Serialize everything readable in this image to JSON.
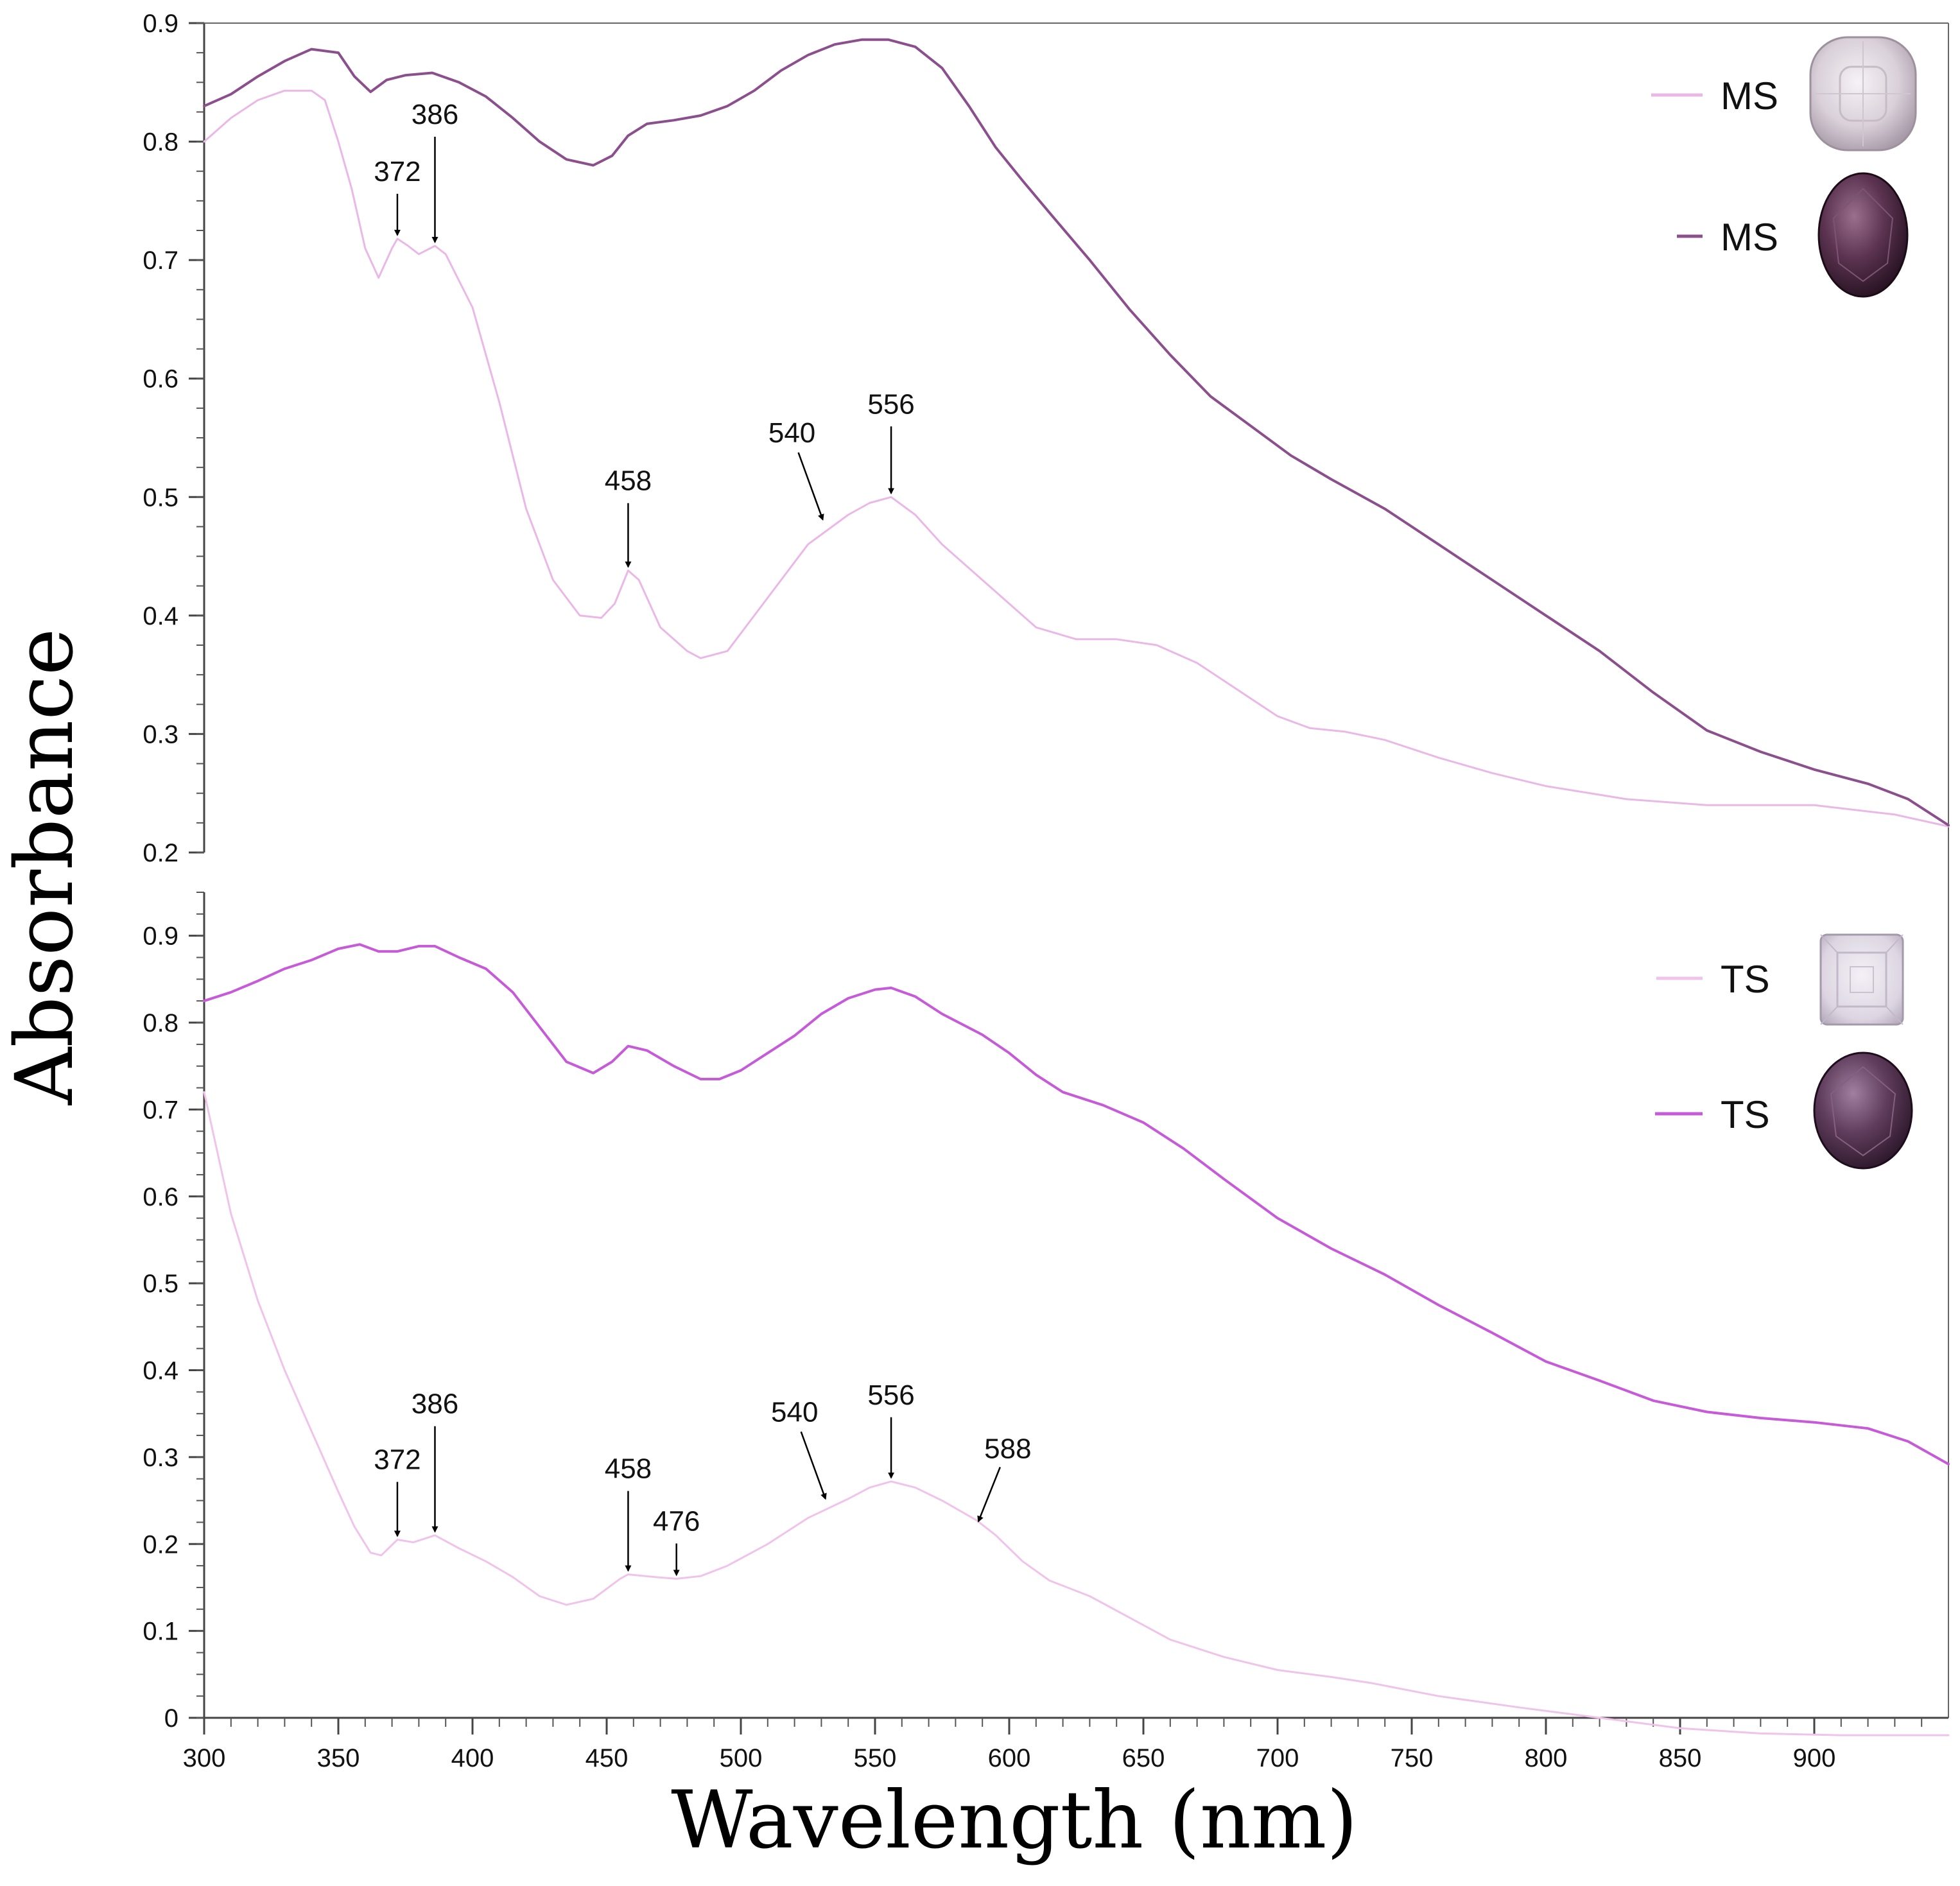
{
  "chart_data": {
    "type": "line",
    "xlabel": "Wavelength (nm)",
    "ylabel": "Absorbance",
    "xlim": [
      300,
      950
    ],
    "x_ticks": [
      300,
      350,
      400,
      450,
      500,
      550,
      600,
      650,
      700,
      750,
      800,
      850,
      900
    ],
    "grid": false,
    "panels": [
      {
        "id": "top",
        "ylim": [
          0.2,
          0.9
        ],
        "y_ticks": [
          "0.2",
          "0.3",
          "0.4",
          "0.5",
          "0.6",
          "0.7",
          "0.8",
          "0.9"
        ],
        "legend_position": "top-right",
        "series": [
          {
            "name": "MS",
            "color": "#eab8e6",
            "stroke_width": 3,
            "swatch": "light-cushion-gem",
            "points": [
              [
                300,
                0.8
              ],
              [
                310,
                0.82
              ],
              [
                320,
                0.835
              ],
              [
                330,
                0.843
              ],
              [
                340,
                0.843
              ],
              [
                345,
                0.835
              ],
              [
                350,
                0.8
              ],
              [
                355,
                0.76
              ],
              [
                360,
                0.71
              ],
              [
                365,
                0.685
              ],
              [
                370,
                0.71
              ],
              [
                372,
                0.718
              ],
              [
                376,
                0.712
              ],
              [
                380,
                0.705
              ],
              [
                386,
                0.712
              ],
              [
                390,
                0.705
              ],
              [
                400,
                0.66
              ],
              [
                410,
                0.58
              ],
              [
                420,
                0.49
              ],
              [
                430,
                0.43
              ],
              [
                440,
                0.4
              ],
              [
                448,
                0.398
              ],
              [
                453,
                0.41
              ],
              [
                458,
                0.438
              ],
              [
                462,
                0.43
              ],
              [
                470,
                0.39
              ],
              [
                480,
                0.37
              ],
              [
                485,
                0.364
              ],
              [
                495,
                0.37
              ],
              [
                505,
                0.4
              ],
              [
                515,
                0.43
              ],
              [
                525,
                0.46
              ],
              [
                540,
                0.485
              ],
              [
                548,
                0.495
              ],
              [
                556,
                0.5
              ],
              [
                565,
                0.485
              ],
              [
                575,
                0.46
              ],
              [
                590,
                0.43
              ],
              [
                600,
                0.41
              ],
              [
                610,
                0.39
              ],
              [
                625,
                0.38
              ],
              [
                640,
                0.38
              ],
              [
                655,
                0.375
              ],
              [
                670,
                0.36
              ],
              [
                680,
                0.345
              ],
              [
                690,
                0.33
              ],
              [
                700,
                0.315
              ],
              [
                712,
                0.305
              ],
              [
                725,
                0.302
              ],
              [
                740,
                0.295
              ],
              [
                760,
                0.28
              ],
              [
                780,
                0.267
              ],
              [
                800,
                0.256
              ],
              [
                830,
                0.245
              ],
              [
                860,
                0.24
              ],
              [
                900,
                0.24
              ],
              [
                930,
                0.232
              ],
              [
                950,
                0.222
              ]
            ]
          },
          {
            "name": "MS",
            "color": "#8c4f8e",
            "stroke_width": 4,
            "swatch": "dark-oval-gem",
            "points": [
              [
                300,
                0.83
              ],
              [
                310,
                0.84
              ],
              [
                320,
                0.855
              ],
              [
                330,
                0.868
              ],
              [
                340,
                0.878
              ],
              [
                350,
                0.875
              ],
              [
                356,
                0.855
              ],
              [
                362,
                0.842
              ],
              [
                368,
                0.852
              ],
              [
                375,
                0.856
              ],
              [
                385,
                0.858
              ],
              [
                395,
                0.85
              ],
              [
                405,
                0.838
              ],
              [
                415,
                0.82
              ],
              [
                425,
                0.8
              ],
              [
                435,
                0.785
              ],
              [
                445,
                0.78
              ],
              [
                452,
                0.788
              ],
              [
                458,
                0.805
              ],
              [
                465,
                0.815
              ],
              [
                475,
                0.818
              ],
              [
                485,
                0.822
              ],
              [
                495,
                0.83
              ],
              [
                505,
                0.843
              ],
              [
                515,
                0.86
              ],
              [
                525,
                0.873
              ],
              [
                535,
                0.882
              ],
              [
                545,
                0.886
              ],
              [
                555,
                0.886
              ],
              [
                565,
                0.88
              ],
              [
                575,
                0.862
              ],
              [
                585,
                0.83
              ],
              [
                595,
                0.795
              ],
              [
                605,
                0.767
              ],
              [
                615,
                0.74
              ],
              [
                630,
                0.7
              ],
              [
                645,
                0.658
              ],
              [
                660,
                0.62
              ],
              [
                675,
                0.585
              ],
              [
                690,
                0.56
              ],
              [
                705,
                0.535
              ],
              [
                720,
                0.515
              ],
              [
                740,
                0.49
              ],
              [
                760,
                0.46
              ],
              [
                780,
                0.43
              ],
              [
                800,
                0.4
              ],
              [
                820,
                0.37
              ],
              [
                840,
                0.335
              ],
              [
                860,
                0.303
              ],
              [
                880,
                0.285
              ],
              [
                900,
                0.27
              ],
              [
                920,
                0.258
              ],
              [
                935,
                0.245
              ],
              [
                950,
                0.223
              ]
            ]
          }
        ],
        "annotations": [
          {
            "label": "372",
            "x": 372,
            "y": 0.718
          },
          {
            "label": "386",
            "x": 386,
            "y": 0.712
          },
          {
            "label": "458",
            "x": 458,
            "y": 0.438
          },
          {
            "label": "540",
            "x": 531,
            "y": 0.478
          },
          {
            "label": "556",
            "x": 556,
            "y": 0.5
          }
        ]
      },
      {
        "id": "bottom",
        "ylim": [
          0,
          0.95
        ],
        "y_ticks": [
          "0",
          "0.1",
          "0.2",
          "0.3",
          "0.4",
          "0.5",
          "0.6",
          "0.7",
          "0.8",
          "0.9"
        ],
        "legend_position": "top-right",
        "series": [
          {
            "name": "TS",
            "color": "#efc3ea",
            "stroke_width": 3,
            "swatch": "light-square-gem",
            "points": [
              [
                300,
                0.72
              ],
              [
                310,
                0.58
              ],
              [
                320,
                0.48
              ],
              [
                330,
                0.4
              ],
              [
                340,
                0.33
              ],
              [
                350,
                0.26
              ],
              [
                356,
                0.22
              ],
              [
                362,
                0.19
              ],
              [
                366,
                0.187
              ],
              [
                372,
                0.205
              ],
              [
                378,
                0.202
              ],
              [
                386,
                0.21
              ],
              [
                395,
                0.195
              ],
              [
                405,
                0.18
              ],
              [
                415,
                0.162
              ],
              [
                425,
                0.14
              ],
              [
                435,
                0.13
              ],
              [
                445,
                0.137
              ],
              [
                455,
                0.16
              ],
              [
                458,
                0.165
              ],
              [
                468,
                0.162
              ],
              [
                476,
                0.16
              ],
              [
                485,
                0.163
              ],
              [
                495,
                0.175
              ],
              [
                510,
                0.2
              ],
              [
                525,
                0.23
              ],
              [
                540,
                0.252
              ],
              [
                548,
                0.265
              ],
              [
                556,
                0.272
              ],
              [
                565,
                0.265
              ],
              [
                575,
                0.25
              ],
              [
                588,
                0.227
              ],
              [
                595,
                0.21
              ],
              [
                605,
                0.18
              ],
              [
                615,
                0.158
              ],
              [
                630,
                0.14
              ],
              [
                645,
                0.115
              ],
              [
                660,
                0.09
              ],
              [
                680,
                0.07
              ],
              [
                700,
                0.055
              ],
              [
                720,
                0.047
              ],
              [
                735,
                0.04
              ],
              [
                760,
                0.025
              ],
              [
                790,
                0.012
              ],
              [
                820,
                0.0
              ],
              [
                850,
                -0.012
              ],
              [
                880,
                -0.018
              ],
              [
                910,
                -0.02
              ],
              [
                950,
                -0.02
              ]
            ]
          },
          {
            "name": "TS",
            "color": "#c65ad8",
            "stroke_width": 4,
            "swatch": "dark-oval-gem",
            "points": [
              [
                300,
                0.825
              ],
              [
                310,
                0.835
              ],
              [
                320,
                0.848
              ],
              [
                330,
                0.862
              ],
              [
                340,
                0.872
              ],
              [
                350,
                0.885
              ],
              [
                358,
                0.89
              ],
              [
                365,
                0.882
              ],
              [
                372,
                0.882
              ],
              [
                380,
                0.888
              ],
              [
                386,
                0.888
              ],
              [
                395,
                0.875
              ],
              [
                405,
                0.862
              ],
              [
                415,
                0.835
              ],
              [
                425,
                0.795
              ],
              [
                435,
                0.755
              ],
              [
                445,
                0.742
              ],
              [
                452,
                0.755
              ],
              [
                458,
                0.773
              ],
              [
                465,
                0.768
              ],
              [
                475,
                0.75
              ],
              [
                485,
                0.735
              ],
              [
                492,
                0.735
              ],
              [
                500,
                0.745
              ],
              [
                510,
                0.765
              ],
              [
                520,
                0.785
              ],
              [
                530,
                0.81
              ],
              [
                540,
                0.828
              ],
              [
                550,
                0.838
              ],
              [
                556,
                0.84
              ],
              [
                565,
                0.83
              ],
              [
                575,
                0.81
              ],
              [
                590,
                0.786
              ],
              [
                600,
                0.765
              ],
              [
                610,
                0.74
              ],
              [
                620,
                0.72
              ],
              [
                635,
                0.705
              ],
              [
                650,
                0.685
              ],
              [
                665,
                0.655
              ],
              [
                680,
                0.62
              ],
              [
                700,
                0.575
              ],
              [
                720,
                0.54
              ],
              [
                740,
                0.51
              ],
              [
                760,
                0.475
              ],
              [
                780,
                0.443
              ],
              [
                800,
                0.41
              ],
              [
                820,
                0.388
              ],
              [
                840,
                0.365
              ],
              [
                860,
                0.352
              ],
              [
                880,
                0.345
              ],
              [
                900,
                0.34
              ],
              [
                920,
                0.333
              ],
              [
                935,
                0.318
              ],
              [
                950,
                0.292
              ]
            ]
          }
        ],
        "annotations": [
          {
            "label": "372",
            "x": 372,
            "y": 0.205
          },
          {
            "label": "386",
            "x": 386,
            "y": 0.21
          },
          {
            "label": "458",
            "x": 458,
            "y": 0.165
          },
          {
            "label": "476",
            "x": 476,
            "y": 0.16
          },
          {
            "label": "540",
            "x": 532,
            "y": 0.248
          },
          {
            "label": "556",
            "x": 556,
            "y": 0.272
          },
          {
            "label": "588",
            "x": 588,
            "y": 0.222
          }
        ]
      }
    ]
  }
}
